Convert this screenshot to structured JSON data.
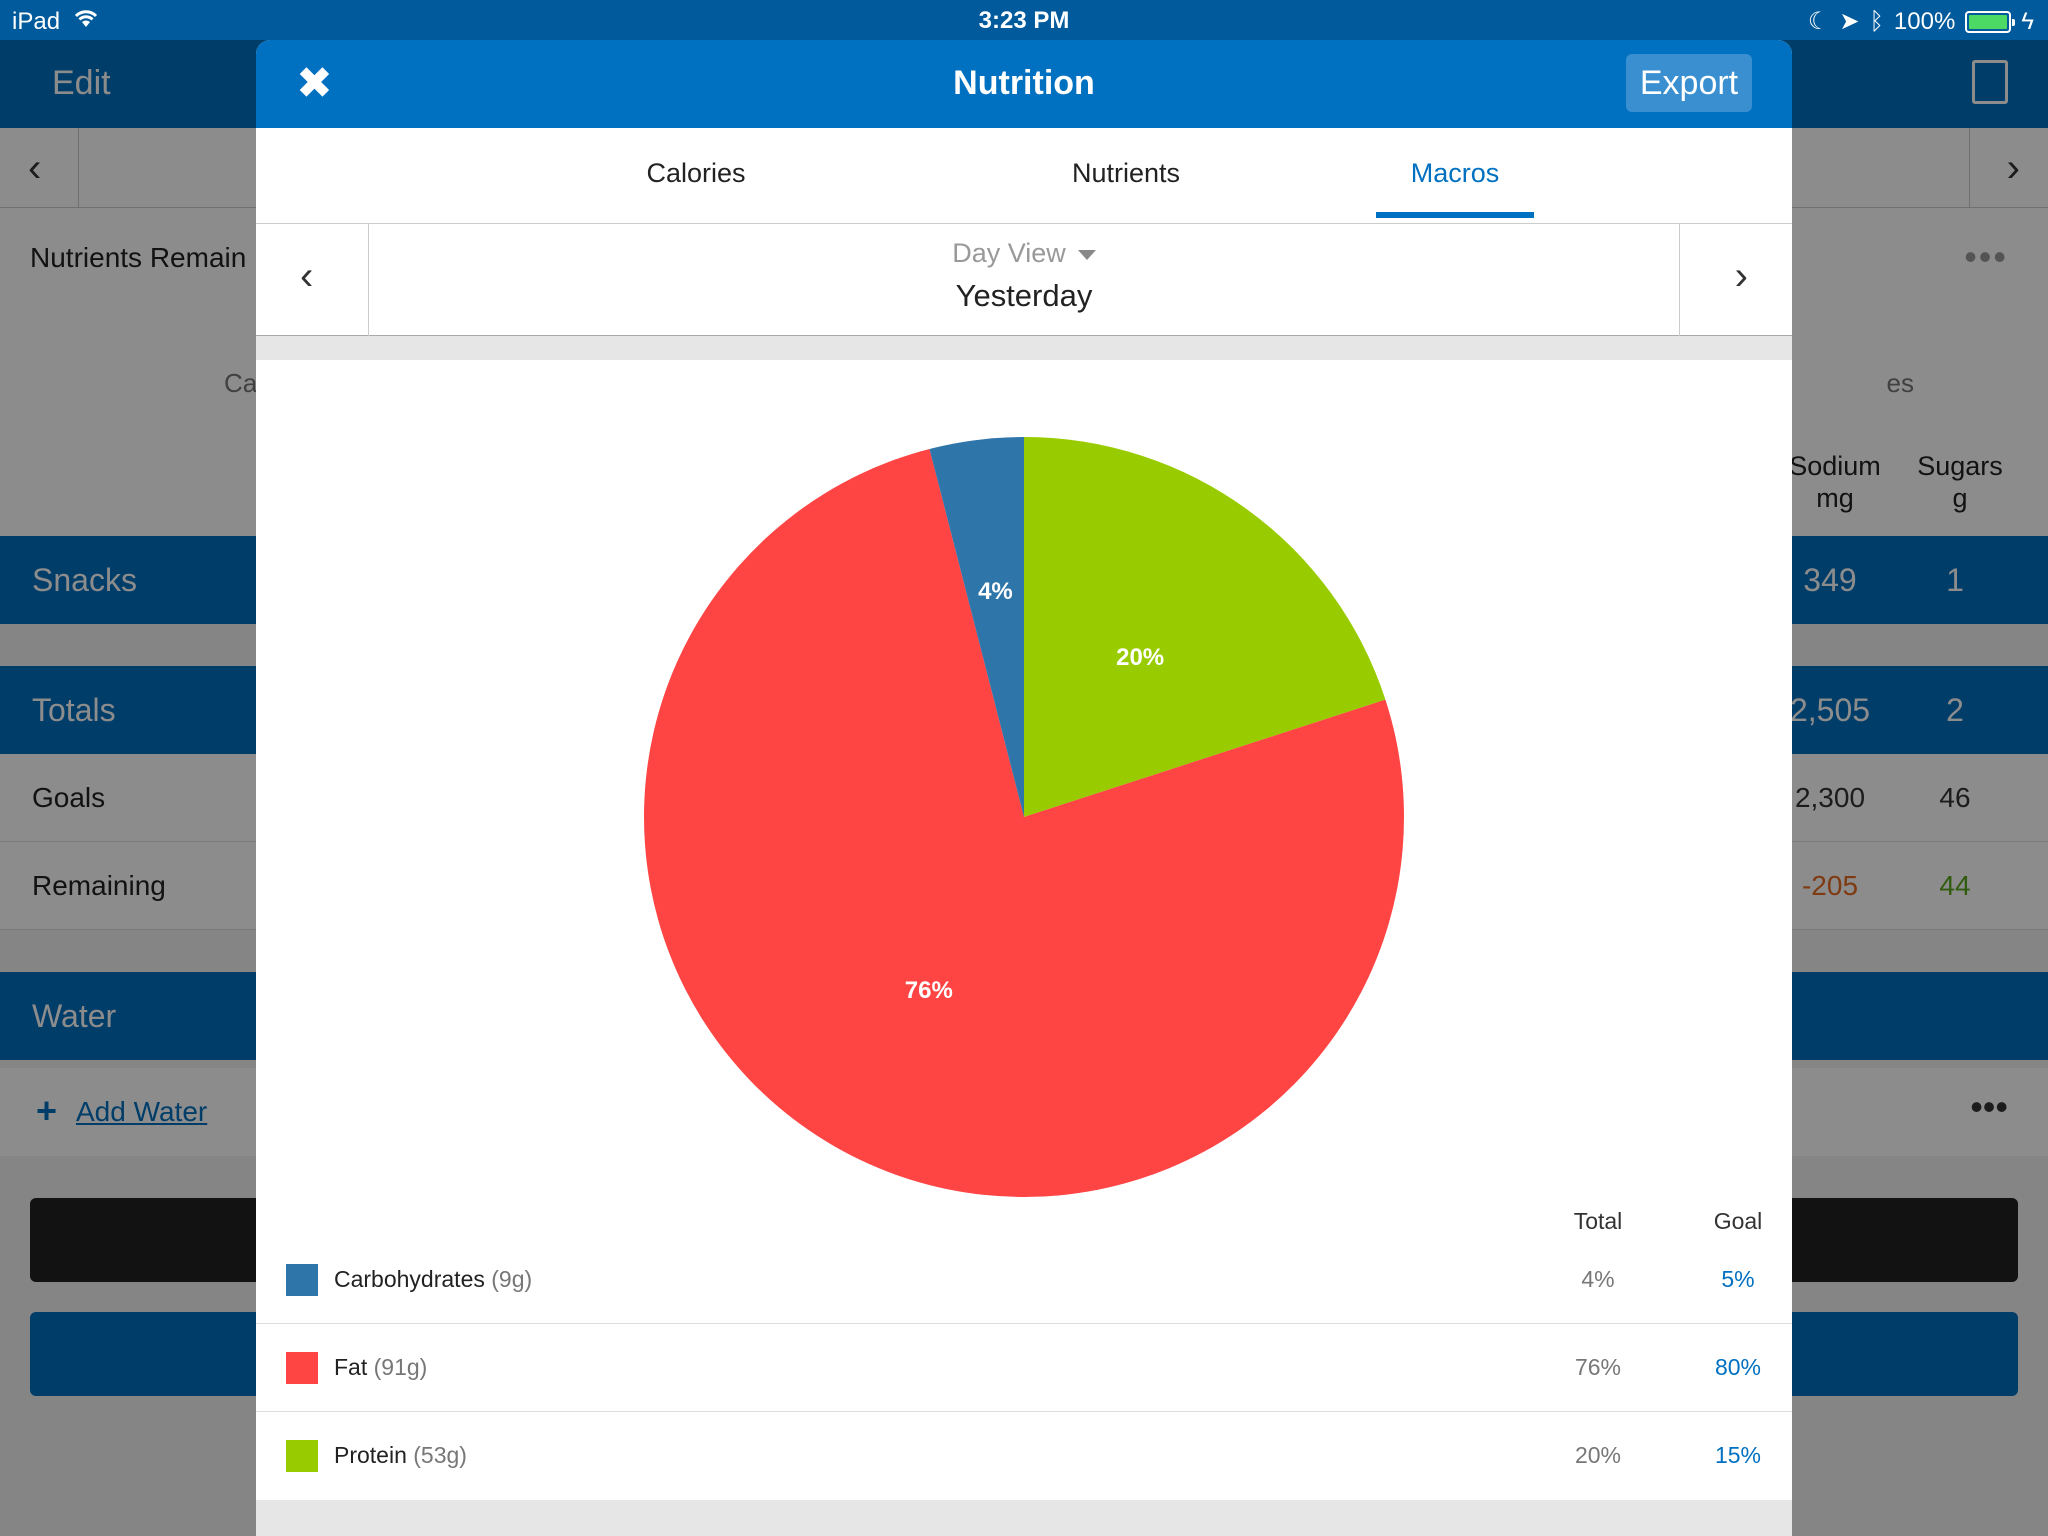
{
  "status_bar": {
    "device": "iPad",
    "time": "3:23 PM",
    "battery": "100%"
  },
  "background": {
    "edit_label": "Edit",
    "nutrients_remaining": "Nutrients Remain",
    "col_ca": "Ca",
    "col_es": "es",
    "columns": [
      {
        "name": "Sodium",
        "unit": "mg"
      },
      {
        "name": "Sugars",
        "unit": "g"
      }
    ],
    "snacks": {
      "label": "Snacks",
      "sodium": "349",
      "sugars": "1"
    },
    "totals": {
      "label": "Totals",
      "sodium": "2,505",
      "sugars": "2"
    },
    "goals": {
      "label": "Goals",
      "sodium": "2,300",
      "sugars": "46"
    },
    "remaining": {
      "label": "Remaining",
      "sodium": "-205",
      "sugars": "44"
    },
    "water": {
      "label": "Water"
    },
    "add_water": "Add Water"
  },
  "modal": {
    "close_glyph": "✖",
    "title": "Nutrition",
    "export_label": "Export",
    "tabs": [
      {
        "label": "Calories",
        "active": false
      },
      {
        "label": "Nutrients",
        "active": false
      },
      {
        "label": "Macros",
        "active": true
      }
    ],
    "date_nav": {
      "prev": "‹",
      "next": "›",
      "view": "Day View",
      "day": "Yesterday"
    },
    "legend": {
      "total_header": "Total",
      "goal_header": "Goal",
      "rows": [
        {
          "name": "Carbohydrates",
          "amount": "(9g)",
          "total": "4%",
          "goal": "5%",
          "color": "#2e75aa"
        },
        {
          "name": "Fat",
          "amount": "(91g)",
          "total": "76%",
          "goal": "80%",
          "color": "#ff4444"
        },
        {
          "name": "Protein",
          "amount": "(53g)",
          "total": "20%",
          "goal": "15%",
          "color": "#99cc00"
        }
      ]
    }
  },
  "chart_data": {
    "type": "pie",
    "slices": [
      {
        "label": "Protein",
        "value": 20,
        "display": "20%",
        "color": "#99cc00"
      },
      {
        "label": "Fat",
        "value": 76,
        "display": "76%",
        "color": "#ff4444"
      },
      {
        "label": "Carbohydrates",
        "value": 4,
        "display": "4%",
        "color": "#2e75aa"
      }
    ],
    "start": "top",
    "direction": "clockwise"
  }
}
